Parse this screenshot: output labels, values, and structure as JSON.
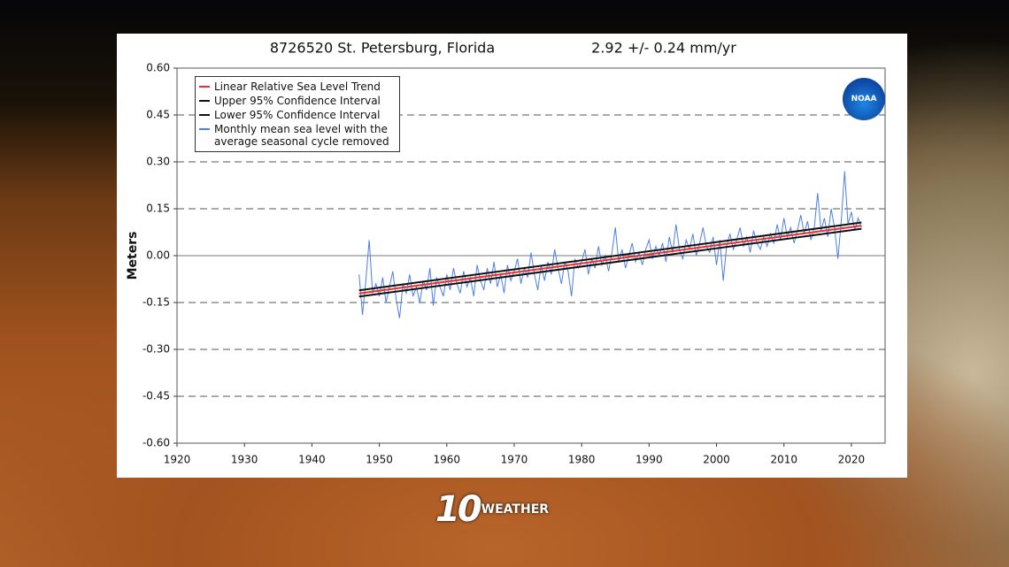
{
  "chart_data": {
    "type": "line",
    "title": "8726520 St. Petersburg, Florida",
    "subtitle": "2.92 +/-  0.24 mm/yr",
    "y_label": "Meters",
    "logo": "NOAA",
    "xlim": [
      1920,
      2025
    ],
    "xticks": [
      1920,
      1930,
      1940,
      1950,
      1960,
      1970,
      1980,
      1990,
      2000,
      2010,
      2020
    ],
    "ylim": [
      -0.6,
      0.6
    ],
    "yticks": [
      {
        "value": 0.6,
        "label": "0.60"
      },
      {
        "value": 0.45,
        "label": "0.45"
      },
      {
        "value": 0.3,
        "label": "0.30"
      },
      {
        "value": 0.15,
        "label": "0.15"
      },
      {
        "value": 0,
        "label": "0.00"
      },
      {
        "value": -0.15,
        "label": "-0.15"
      },
      {
        "value": -0.3,
        "label": "-0.30"
      },
      {
        "value": -0.45,
        "label": "-0.45"
      },
      {
        "value": -0.6,
        "label": "-0.60"
      }
    ],
    "grid": true,
    "legend": "upper left",
    "series": [
      {
        "name": "Linear Relative Sea Level Trend",
        "color": "#e8302c",
        "x": [
          1947,
          2021.5
        ],
        "values": [
          -0.121,
          0.096
        ]
      },
      {
        "name": "Upper 95% Confidence Interval",
        "color": "#111111",
        "x": [
          1947,
          2021.5
        ],
        "values": [
          -0.111,
          0.106
        ]
      },
      {
        "name": "Lower 95% Confidence Interval",
        "color": "#111111",
        "x": [
          1947,
          2021.5
        ],
        "values": [
          -0.131,
          0.086
        ]
      },
      {
        "name": "Monthly mean sea level with the average seasonal cycle removed",
        "color": "#4d7fe8",
        "x": [
          1947,
          1947.5,
          1948,
          1948.5,
          1949,
          1949.5,
          1950,
          1950.5,
          1951,
          1951.5,
          1952,
          1952.5,
          1953,
          1953.5,
          1954,
          1954.5,
          1955,
          1955.5,
          1956,
          1956.5,
          1957,
          1957.5,
          1958,
          1958.5,
          1959,
          1959.5,
          1960,
          1960.5,
          1961,
          1961.5,
          1962,
          1962.5,
          1963,
          1963.5,
          1964,
          1964.5,
          1965,
          1965.5,
          1966,
          1966.5,
          1967,
          1967.5,
          1968,
          1968.5,
          1969,
          1969.5,
          1970,
          1970.5,
          1971,
          1971.5,
          1972,
          1972.5,
          1973,
          1973.5,
          1974,
          1974.5,
          1975,
          1975.5,
          1976,
          1976.5,
          1977,
          1977.5,
          1978,
          1978.5,
          1979,
          1979.5,
          1980,
          1980.5,
          1981,
          1981.5,
          1982,
          1982.5,
          1983,
          1983.5,
          1984,
          1984.5,
          1985,
          1985.5,
          1986,
          1986.5,
          1987,
          1987.5,
          1988,
          1988.5,
          1989,
          1989.5,
          1990,
          1990.5,
          1991,
          1991.5,
          1992,
          1992.5,
          1993,
          1993.5,
          1994,
          1994.5,
          1995,
          1995.5,
          1996,
          1996.5,
          1997,
          1997.5,
          1998,
          1998.5,
          1999,
          1999.5,
          2000,
          2000.5,
          2001,
          2001.5,
          2002,
          2002.5,
          2003,
          2003.5,
          2004,
          2004.5,
          2005,
          2005.5,
          2006,
          2006.5,
          2007,
          2007.5,
          2008,
          2008.5,
          2009,
          2009.5,
          2010,
          2010.5,
          2011,
          2011.5,
          2012,
          2012.5,
          2013,
          2013.5,
          2014,
          2014.5,
          2015,
          2015.5,
          2016,
          2016.5,
          2017,
          2017.5,
          2018,
          2018.5,
          2019,
          2019.5,
          2020,
          2020.5,
          2021,
          2021.5
        ],
        "values": [
          -0.06,
          -0.19,
          -0.08,
          0.05,
          -0.12,
          -0.09,
          -0.13,
          -0.07,
          -0.15,
          -0.1,
          -0.05,
          -0.14,
          -0.2,
          -0.09,
          -0.12,
          -0.06,
          -0.13,
          -0.1,
          -0.15,
          -0.08,
          -0.11,
          -0.04,
          -0.16,
          -0.07,
          -0.1,
          -0.13,
          -0.06,
          -0.11,
          -0.04,
          -0.09,
          -0.12,
          -0.05,
          -0.1,
          -0.07,
          -0.13,
          -0.03,
          -0.08,
          -0.11,
          -0.04,
          -0.09,
          -0.02,
          -0.1,
          -0.06,
          -0.12,
          -0.03,
          -0.08,
          -0.05,
          -0.01,
          -0.09,
          -0.04,
          -0.07,
          0.01,
          -0.06,
          -0.11,
          -0.03,
          -0.08,
          -0.02,
          -0.06,
          0.02,
          -0.04,
          -0.09,
          -0.02,
          -0.05,
          -0.13,
          -0.01,
          -0.04,
          -0.02,
          0.02,
          -0.06,
          -0.01,
          -0.04,
          0.03,
          -0.03,
          0.0,
          -0.05,
          0.01,
          0.09,
          -0.02,
          0.02,
          -0.04,
          0.0,
          0.04,
          -0.02,
          0.01,
          -0.03,
          0.02,
          0.05,
          -0.01,
          0.03,
          0.0,
          0.04,
          -0.02,
          0.06,
          0.01,
          0.1,
          0.02,
          -0.01,
          0.05,
          0.02,
          0.07,
          0.0,
          0.04,
          0.09,
          0.03,
          0.01,
          0.06,
          -0.03,
          0.05,
          -0.08,
          0.03,
          0.07,
          0.02,
          0.05,
          0.09,
          0.03,
          0.06,
          0.01,
          0.08,
          0.04,
          0.02,
          0.06,
          0.03,
          0.07,
          0.04,
          0.1,
          0.05,
          0.12,
          0.06,
          0.09,
          0.04,
          0.08,
          0.13,
          0.07,
          0.11,
          0.05,
          0.09,
          0.2,
          0.08,
          0.12,
          0.06,
          0.15,
          0.09,
          -0.01,
          0.11,
          0.27,
          0.1,
          0.14,
          0.08,
          0.12,
          0.09
        ]
      }
    ]
  },
  "branding": {
    "number": "10",
    "word": "WEATHER"
  }
}
